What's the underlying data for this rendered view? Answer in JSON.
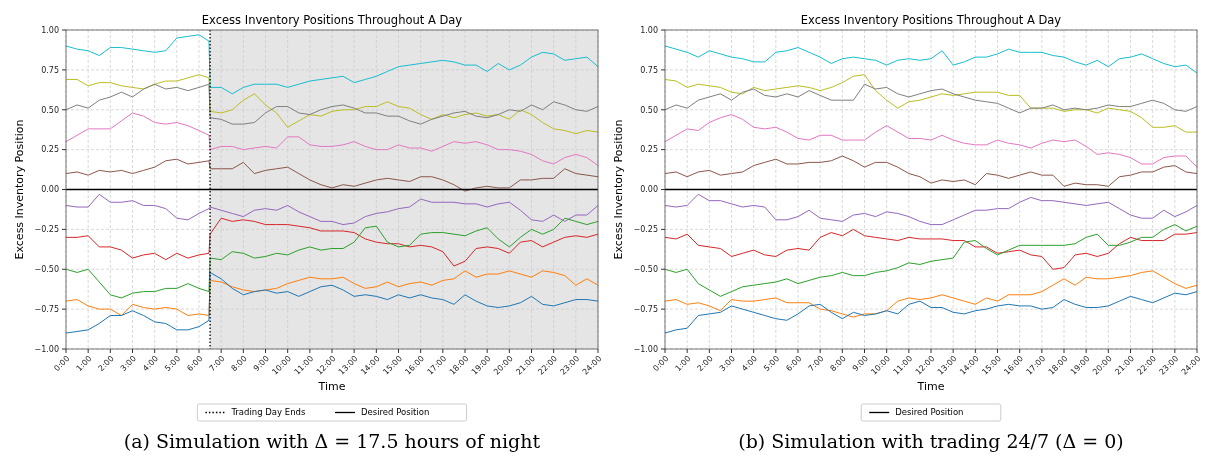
{
  "chart_data": [
    {
      "type": "line",
      "title": "Excess Inventory Positions Throughout A Day",
      "xlabel": "Time",
      "ylabel": "Excess Inventory Position",
      "x": [
        0,
        0.5,
        1,
        1.5,
        2,
        2.5,
        3,
        3.5,
        4,
        4.5,
        5,
        5.5,
        6,
        6.45,
        6.5,
        7,
        7.5,
        8,
        8.5,
        9,
        9.5,
        10,
        10.5,
        11,
        11.5,
        12,
        12.5,
        13,
        13.5,
        14,
        14.5,
        15,
        15.5,
        16,
        16.5,
        17,
        17.5,
        18,
        18.5,
        19,
        19.5,
        20,
        20.5,
        21,
        21.5,
        22,
        22.5,
        23,
        23.5,
        24
      ],
      "xlim": [
        0,
        24
      ],
      "xticks": [
        {
          "value": 0,
          "label": "0:00"
        },
        {
          "value": 1,
          "label": "1:00"
        },
        {
          "value": 2,
          "label": "2:00"
        },
        {
          "value": 3,
          "label": "3:00"
        },
        {
          "value": 4,
          "label": "4:00"
        },
        {
          "value": 5,
          "label": "5:00"
        },
        {
          "value": 6,
          "label": "6:00"
        },
        {
          "value": 7,
          "label": "7:00"
        },
        {
          "value": 8,
          "label": "8:00"
        },
        {
          "value": 9,
          "label": "9:00"
        },
        {
          "value": 10,
          "label": "10:00"
        },
        {
          "value": 11,
          "label": "11:00"
        },
        {
          "value": 12,
          "label": "12:00"
        },
        {
          "value": 13,
          "label": "13:00"
        },
        {
          "value": 14,
          "label": "14:00"
        },
        {
          "value": 15,
          "label": "15:00"
        },
        {
          "value": 16,
          "label": "16:00"
        },
        {
          "value": 17,
          "label": "17:00"
        },
        {
          "value": 18,
          "label": "18:00"
        },
        {
          "value": 19,
          "label": "19:00"
        },
        {
          "value": 20,
          "label": "20:00"
        },
        {
          "value": 21,
          "label": "21:00"
        },
        {
          "value": 22,
          "label": "22:00"
        },
        {
          "value": 23,
          "label": "23:00"
        },
        {
          "value": 24,
          "label": "24:00"
        }
      ],
      "ylim": [
        -1,
        1
      ],
      "yticks": [
        {
          "value": -1,
          "label": "−1.00"
        },
        {
          "value": -0.75,
          "label": "−0.75"
        },
        {
          "value": -0.5,
          "label": "−0.50"
        },
        {
          "value": -0.25,
          "label": "−0.25"
        },
        {
          "value": 0,
          "label": "0.00"
        },
        {
          "value": 0.25,
          "label": "0.25"
        },
        {
          "value": 0.5,
          "label": "0.50"
        },
        {
          "value": 0.75,
          "label": "0.75"
        },
        {
          "value": 1,
          "label": "1.00"
        }
      ],
      "grid": true,
      "legend": "bottom",
      "bands": [
        {
          "axis": "x",
          "from": 6.5,
          "to": 24,
          "color": "#e5e5e5"
        }
      ],
      "ref_lines": [
        {
          "axis": "x",
          "value": 6.5,
          "label": "Trading Day Ends",
          "line_style": "dotted",
          "color": "#000000"
        },
        {
          "axis": "y",
          "value": 0,
          "label": "Desired Position",
          "line_style": "solid",
          "color": "#000000"
        }
      ],
      "annotations": [
        "(a) Simulation with Δ = 17.5 hours of night"
      ],
      "series": [
        {
          "color": "#17becf",
          "values": [
            0.9,
            0.88,
            0.87,
            0.84,
            0.89,
            0.89,
            0.88,
            0.87,
            0.86,
            0.87,
            0.95,
            0.96,
            0.97,
            0.93,
            0.64,
            0.64,
            0.6,
            0.64,
            0.66,
            0.66,
            0.66,
            0.64,
            0.66,
            0.68,
            0.69,
            0.7,
            0.71,
            0.67,
            0.69,
            0.71,
            0.74,
            0.77,
            0.78,
            0.79,
            0.8,
            0.81,
            0.8,
            0.78,
            0.78,
            0.74,
            0.79,
            0.75,
            0.78,
            0.83,
            0.86,
            0.85,
            0.81,
            0.82,
            0.83,
            0.77
          ]
        },
        {
          "color": "#bcbd22",
          "values": [
            0.69,
            0.69,
            0.65,
            0.67,
            0.67,
            0.65,
            0.64,
            0.63,
            0.66,
            0.68,
            0.68,
            0.7,
            0.72,
            0.7,
            0.49,
            0.48,
            0.5,
            0.56,
            0.6,
            0.53,
            0.48,
            0.39,
            0.43,
            0.47,
            0.46,
            0.49,
            0.5,
            0.5,
            0.52,
            0.52,
            0.55,
            0.52,
            0.51,
            0.47,
            0.44,
            0.47,
            0.45,
            0.47,
            0.48,
            0.46,
            0.47,
            0.44,
            0.5,
            0.47,
            0.42,
            0.38,
            0.37,
            0.35,
            0.37,
            0.36
          ]
        },
        {
          "color": "#7f7f7f",
          "values": [
            0.5,
            0.53,
            0.51,
            0.56,
            0.58,
            0.61,
            0.58,
            0.63,
            0.66,
            0.63,
            0.64,
            0.62,
            0.64,
            0.66,
            0.45,
            0.44,
            0.41,
            0.41,
            0.42,
            0.48,
            0.52,
            0.52,
            0.48,
            0.47,
            0.5,
            0.52,
            0.53,
            0.51,
            0.48,
            0.48,
            0.46,
            0.46,
            0.43,
            0.41,
            0.44,
            0.46,
            0.48,
            0.49,
            0.46,
            0.45,
            0.47,
            0.5,
            0.49,
            0.53,
            0.5,
            0.55,
            0.53,
            0.5,
            0.49,
            0.52
          ]
        },
        {
          "color": "#e377c2",
          "values": [
            0.3,
            0.34,
            0.38,
            0.38,
            0.38,
            0.43,
            0.48,
            0.46,
            0.42,
            0.41,
            0.42,
            0.4,
            0.37,
            0.34,
            0.25,
            0.27,
            0.27,
            0.25,
            0.26,
            0.27,
            0.26,
            0.33,
            0.33,
            0.28,
            0.27,
            0.27,
            0.28,
            0.3,
            0.27,
            0.25,
            0.25,
            0.28,
            0.26,
            0.26,
            0.24,
            0.27,
            0.3,
            0.29,
            0.3,
            0.28,
            0.25,
            0.25,
            0.24,
            0.22,
            0.18,
            0.16,
            0.2,
            0.22,
            0.2,
            0.15
          ]
        },
        {
          "color": "#8c564b",
          "values": [
            0.1,
            0.11,
            0.09,
            0.12,
            0.11,
            0.12,
            0.1,
            0.12,
            0.14,
            0.18,
            0.19,
            0.16,
            0.17,
            0.18,
            0.13,
            0.13,
            0.13,
            0.17,
            0.1,
            0.12,
            0.13,
            0.14,
            0.1,
            0.06,
            0.03,
            0.01,
            0.03,
            0.02,
            0.04,
            0.06,
            0.07,
            0.06,
            0.05,
            0.08,
            0.08,
            0.06,
            0.03,
            -0.01,
            0.01,
            0.02,
            0.01,
            0.01,
            0.06,
            0.06,
            0.07,
            0.07,
            0.13,
            0.1,
            0.09,
            0.08
          ]
        },
        {
          "color": "#9467bd",
          "values": [
            -0.1,
            -0.11,
            -0.11,
            -0.03,
            -0.08,
            -0.08,
            -0.07,
            -0.1,
            -0.1,
            -0.12,
            -0.18,
            -0.19,
            -0.15,
            -0.12,
            -0.11,
            -0.13,
            -0.15,
            -0.17,
            -0.13,
            -0.12,
            -0.13,
            -0.1,
            -0.14,
            -0.17,
            -0.2,
            -0.2,
            -0.22,
            -0.21,
            -0.17,
            -0.15,
            -0.14,
            -0.12,
            -0.11,
            -0.06,
            -0.08,
            -0.08,
            -0.08,
            -0.09,
            -0.09,
            -0.11,
            -0.09,
            -0.08,
            -0.13,
            -0.19,
            -0.2,
            -0.16,
            -0.2,
            -0.16,
            -0.16,
            -0.1
          ]
        },
        {
          "color": "#d62728",
          "values": [
            -0.3,
            -0.3,
            -0.29,
            -0.36,
            -0.36,
            -0.38,
            -0.43,
            -0.41,
            -0.4,
            -0.44,
            -0.4,
            -0.43,
            -0.41,
            -0.4,
            -0.28,
            -0.18,
            -0.2,
            -0.19,
            -0.2,
            -0.22,
            -0.22,
            -0.22,
            -0.23,
            -0.24,
            -0.26,
            -0.26,
            -0.26,
            -0.27,
            -0.31,
            -0.33,
            -0.34,
            -0.34,
            -0.36,
            -0.35,
            -0.36,
            -0.39,
            -0.48,
            -0.45,
            -0.37,
            -0.36,
            -0.37,
            -0.4,
            -0.33,
            -0.32,
            -0.36,
            -0.33,
            -0.3,
            -0.29,
            -0.3,
            -0.28
          ]
        },
        {
          "color": "#2ca02c",
          "values": [
            -0.5,
            -0.52,
            -0.5,
            -0.58,
            -0.66,
            -0.68,
            -0.65,
            -0.64,
            -0.64,
            -0.62,
            -0.62,
            -0.59,
            -0.62,
            -0.64,
            -0.43,
            -0.44,
            -0.39,
            -0.4,
            -0.43,
            -0.42,
            -0.4,
            -0.41,
            -0.38,
            -0.36,
            -0.38,
            -0.37,
            -0.37,
            -0.33,
            -0.24,
            -0.23,
            -0.33,
            -0.36,
            -0.35,
            -0.28,
            -0.27,
            -0.27,
            -0.28,
            -0.29,
            -0.26,
            -0.24,
            -0.31,
            -0.36,
            -0.3,
            -0.25,
            -0.28,
            -0.25,
            -0.18,
            -0.2,
            -0.22,
            -0.2
          ]
        },
        {
          "color": "#ff7f0e",
          "values": [
            -0.7,
            -0.69,
            -0.73,
            -0.75,
            -0.75,
            -0.79,
            -0.72,
            -0.74,
            -0.75,
            -0.74,
            -0.75,
            -0.79,
            -0.78,
            -0.79,
            -0.57,
            -0.58,
            -0.61,
            -0.63,
            -0.64,
            -0.63,
            -0.62,
            -0.59,
            -0.57,
            -0.55,
            -0.56,
            -0.56,
            -0.55,
            -0.59,
            -0.62,
            -0.61,
            -0.58,
            -0.61,
            -0.59,
            -0.58,
            -0.6,
            -0.57,
            -0.56,
            -0.51,
            -0.55,
            -0.53,
            -0.53,
            -0.51,
            -0.53,
            -0.55,
            -0.51,
            -0.52,
            -0.54,
            -0.6,
            -0.56,
            -0.6
          ]
        },
        {
          "color": "#1f77b4",
          "values": [
            -0.9,
            -0.89,
            -0.88,
            -0.84,
            -0.79,
            -0.79,
            -0.76,
            -0.79,
            -0.83,
            -0.84,
            -0.88,
            -0.88,
            -0.86,
            -0.82,
            -0.52,
            -0.56,
            -0.62,
            -0.66,
            -0.64,
            -0.63,
            -0.65,
            -0.64,
            -0.67,
            -0.64,
            -0.61,
            -0.6,
            -0.63,
            -0.67,
            -0.66,
            -0.67,
            -0.69,
            -0.66,
            -0.68,
            -0.66,
            -0.68,
            -0.69,
            -0.72,
            -0.66,
            -0.7,
            -0.73,
            -0.74,
            -0.73,
            -0.71,
            -0.67,
            -0.72,
            -0.73,
            -0.71,
            -0.69,
            -0.69,
            -0.7
          ]
        }
      ]
    },
    {
      "type": "line",
      "title": "Excess Inventory Positions Throughout A Day",
      "xlabel": "Time",
      "ylabel": "Excess Inventory Position",
      "x": [
        0,
        0.5,
        1,
        1.5,
        2,
        2.5,
        3,
        3.5,
        4,
        4.5,
        5,
        5.5,
        6,
        6.5,
        7,
        7.5,
        8,
        8.5,
        9,
        9.5,
        10,
        10.5,
        11,
        11.5,
        12,
        12.5,
        13,
        13.5,
        14,
        14.5,
        15,
        15.5,
        16,
        16.5,
        17,
        17.5,
        18,
        18.5,
        19,
        19.5,
        20,
        20.5,
        21,
        21.5,
        22,
        22.5,
        23,
        23.5,
        24
      ],
      "xlim": [
        0,
        24
      ],
      "xticks": [
        {
          "value": 0,
          "label": "0:00"
        },
        {
          "value": 1,
          "label": "1:00"
        },
        {
          "value": 2,
          "label": "2:00"
        },
        {
          "value": 3,
          "label": "3:00"
        },
        {
          "value": 4,
          "label": "4:00"
        },
        {
          "value": 5,
          "label": "5:00"
        },
        {
          "value": 6,
          "label": "6:00"
        },
        {
          "value": 7,
          "label": "7:00"
        },
        {
          "value": 8,
          "label": "8:00"
        },
        {
          "value": 9,
          "label": "9:00"
        },
        {
          "value": 10,
          "label": "10:00"
        },
        {
          "value": 11,
          "label": "11:00"
        },
        {
          "value": 12,
          "label": "12:00"
        },
        {
          "value": 13,
          "label": "13:00"
        },
        {
          "value": 14,
          "label": "14:00"
        },
        {
          "value": 15,
          "label": "15:00"
        },
        {
          "value": 16,
          "label": "16:00"
        },
        {
          "value": 17,
          "label": "17:00"
        },
        {
          "value": 18,
          "label": "18:00"
        },
        {
          "value": 19,
          "label": "19:00"
        },
        {
          "value": 20,
          "label": "20:00"
        },
        {
          "value": 21,
          "label": "21:00"
        },
        {
          "value": 22,
          "label": "22:00"
        },
        {
          "value": 23,
          "label": "23:00"
        },
        {
          "value": 24,
          "label": "24:00"
        }
      ],
      "ylim": [
        -1,
        1
      ],
      "yticks": [
        {
          "value": -1,
          "label": "−1.00"
        },
        {
          "value": -0.75,
          "label": "−0.75"
        },
        {
          "value": -0.5,
          "label": "−0.50"
        },
        {
          "value": -0.25,
          "label": "−0.25"
        },
        {
          "value": 0,
          "label": "0.00"
        },
        {
          "value": 0.25,
          "label": "0.25"
        },
        {
          "value": 0.5,
          "label": "0.50"
        },
        {
          "value": 0.75,
          "label": "0.75"
        },
        {
          "value": 1,
          "label": "1.00"
        }
      ],
      "grid": true,
      "legend": "bottom",
      "ref_lines": [
        {
          "axis": "y",
          "value": 0,
          "label": "Desired Position",
          "line_style": "solid",
          "color": "#000000"
        }
      ],
      "annotations": [
        "(b) Simulation with trading 24/7 (Δ = 0)"
      ],
      "series": [
        {
          "color": "#17becf",
          "values": [
            0.9,
            0.88,
            0.86,
            0.83,
            0.87,
            0.85,
            0.83,
            0.82,
            0.8,
            0.8,
            0.86,
            0.87,
            0.89,
            0.86,
            0.83,
            0.79,
            0.82,
            0.83,
            0.82,
            0.81,
            0.78,
            0.81,
            0.82,
            0.81,
            0.82,
            0.87,
            0.78,
            0.8,
            0.83,
            0.83,
            0.85,
            0.88,
            0.86,
            0.86,
            0.86,
            0.84,
            0.83,
            0.8,
            0.78,
            0.81,
            0.77,
            0.82,
            0.83,
            0.85,
            0.82,
            0.79,
            0.77,
            0.78,
            0.73
          ]
        },
        {
          "color": "#bcbd22",
          "values": [
            0.69,
            0.68,
            0.64,
            0.66,
            0.65,
            0.64,
            0.61,
            0.6,
            0.64,
            0.62,
            0.63,
            0.64,
            0.65,
            0.64,
            0.62,
            0.64,
            0.67,
            0.71,
            0.72,
            0.62,
            0.56,
            0.51,
            0.55,
            0.56,
            0.58,
            0.6,
            0.59,
            0.6,
            0.61,
            0.61,
            0.61,
            0.59,
            0.59,
            0.51,
            0.51,
            0.51,
            0.49,
            0.5,
            0.5,
            0.48,
            0.51,
            0.5,
            0.49,
            0.45,
            0.39,
            0.39,
            0.4,
            0.36,
            0.36
          ]
        },
        {
          "color": "#7f7f7f",
          "values": [
            0.5,
            0.53,
            0.51,
            0.56,
            0.58,
            0.6,
            0.56,
            0.61,
            0.63,
            0.59,
            0.58,
            0.6,
            0.58,
            0.62,
            0.59,
            0.56,
            0.56,
            0.56,
            0.66,
            0.63,
            0.64,
            0.6,
            0.58,
            0.6,
            0.62,
            0.63,
            0.6,
            0.58,
            0.56,
            0.55,
            0.54,
            0.51,
            0.48,
            0.51,
            0.51,
            0.53,
            0.5,
            0.51,
            0.5,
            0.51,
            0.53,
            0.52,
            0.52,
            0.54,
            0.56,
            0.54,
            0.5,
            0.49,
            0.52
          ]
        },
        {
          "color": "#e377c2",
          "values": [
            0.3,
            0.34,
            0.38,
            0.37,
            0.42,
            0.45,
            0.47,
            0.44,
            0.39,
            0.38,
            0.39,
            0.36,
            0.32,
            0.31,
            0.34,
            0.34,
            0.31,
            0.31,
            0.31,
            0.36,
            0.4,
            0.36,
            0.32,
            0.32,
            0.31,
            0.34,
            0.31,
            0.29,
            0.28,
            0.28,
            0.31,
            0.29,
            0.28,
            0.26,
            0.29,
            0.31,
            0.3,
            0.31,
            0.27,
            0.22,
            0.23,
            0.22,
            0.2,
            0.16,
            0.16,
            0.2,
            0.21,
            0.21,
            0.14
          ]
        },
        {
          "color": "#8c564b",
          "values": [
            0.1,
            0.11,
            0.08,
            0.11,
            0.12,
            0.09,
            0.1,
            0.11,
            0.15,
            0.17,
            0.19,
            0.16,
            0.16,
            0.17,
            0.17,
            0.18,
            0.21,
            0.18,
            0.14,
            0.17,
            0.17,
            0.14,
            0.1,
            0.08,
            0.04,
            0.06,
            0.05,
            0.06,
            0.03,
            0.1,
            0.09,
            0.07,
            0.09,
            0.11,
            0.09,
            0.09,
            0.02,
            0.04,
            0.03,
            0.03,
            0.02,
            0.08,
            0.09,
            0.11,
            0.11,
            0.14,
            0.15,
            0.11,
            0.1
          ]
        },
        {
          "color": "#9467bd",
          "values": [
            -0.1,
            -0.11,
            -0.1,
            -0.03,
            -0.07,
            -0.07,
            -0.09,
            -0.11,
            -0.1,
            -0.11,
            -0.19,
            -0.19,
            -0.17,
            -0.13,
            -0.18,
            -0.19,
            -0.2,
            -0.16,
            -0.15,
            -0.17,
            -0.14,
            -0.15,
            -0.17,
            -0.2,
            -0.22,
            -0.22,
            -0.19,
            -0.16,
            -0.13,
            -0.13,
            -0.12,
            -0.12,
            -0.08,
            -0.05,
            -0.07,
            -0.07,
            -0.08,
            -0.09,
            -0.1,
            -0.09,
            -0.08,
            -0.12,
            -0.16,
            -0.18,
            -0.18,
            -0.13,
            -0.17,
            -0.14,
            -0.1
          ]
        },
        {
          "color": "#d62728",
          "values": [
            -0.3,
            -0.31,
            -0.28,
            -0.35,
            -0.36,
            -0.37,
            -0.42,
            -0.4,
            -0.38,
            -0.41,
            -0.42,
            -0.38,
            -0.37,
            -0.38,
            -0.3,
            -0.27,
            -0.29,
            -0.25,
            -0.29,
            -0.3,
            -0.31,
            -0.32,
            -0.3,
            -0.31,
            -0.31,
            -0.31,
            -0.32,
            -0.32,
            -0.36,
            -0.36,
            -0.4,
            -0.39,
            -0.38,
            -0.41,
            -0.42,
            -0.5,
            -0.49,
            -0.41,
            -0.4,
            -0.42,
            -0.4,
            -0.34,
            -0.3,
            -0.32,
            -0.32,
            -0.32,
            -0.28,
            -0.28,
            -0.27
          ]
        },
        {
          "color": "#2ca02c",
          "values": [
            -0.5,
            -0.52,
            -0.5,
            -0.59,
            -0.63,
            -0.67,
            -0.64,
            -0.61,
            -0.6,
            -0.59,
            -0.58,
            -0.56,
            -0.59,
            -0.57,
            -0.55,
            -0.54,
            -0.52,
            -0.54,
            -0.54,
            -0.52,
            -0.51,
            -0.49,
            -0.46,
            -0.47,
            -0.45,
            -0.44,
            -0.43,
            -0.33,
            -0.32,
            -0.37,
            -0.41,
            -0.38,
            -0.35,
            -0.35,
            -0.35,
            -0.35,
            -0.35,
            -0.34,
            -0.3,
            -0.28,
            -0.35,
            -0.35,
            -0.33,
            -0.3,
            -0.3,
            -0.25,
            -0.22,
            -0.26,
            -0.23
          ]
        },
        {
          "color": "#ff7f0e",
          "values": [
            -0.7,
            -0.69,
            -0.72,
            -0.71,
            -0.73,
            -0.76,
            -0.69,
            -0.7,
            -0.7,
            -0.69,
            -0.68,
            -0.71,
            -0.71,
            -0.71,
            -0.75,
            -0.76,
            -0.78,
            -0.8,
            -0.78,
            -0.78,
            -0.76,
            -0.7,
            -0.68,
            -0.69,
            -0.68,
            -0.66,
            -0.68,
            -0.7,
            -0.72,
            -0.68,
            -0.7,
            -0.66,
            -0.66,
            -0.66,
            -0.64,
            -0.6,
            -0.56,
            -0.6,
            -0.55,
            -0.56,
            -0.56,
            -0.55,
            -0.54,
            -0.52,
            -0.51,
            -0.55,
            -0.59,
            -0.62,
            -0.6
          ]
        },
        {
          "color": "#1f77b4",
          "values": [
            -0.9,
            -0.88,
            -0.87,
            -0.79,
            -0.78,
            -0.77,
            -0.73,
            -0.75,
            -0.77,
            -0.79,
            -0.81,
            -0.82,
            -0.78,
            -0.73,
            -0.72,
            -0.77,
            -0.81,
            -0.77,
            -0.79,
            -0.78,
            -0.76,
            -0.78,
            -0.72,
            -0.7,
            -0.74,
            -0.74,
            -0.77,
            -0.78,
            -0.76,
            -0.75,
            -0.73,
            -0.72,
            -0.73,
            -0.73,
            -0.75,
            -0.74,
            -0.69,
            -0.72,
            -0.74,
            -0.74,
            -0.73,
            -0.7,
            -0.67,
            -0.69,
            -0.71,
            -0.68,
            -0.65,
            -0.66,
            -0.64
          ]
        }
      ]
    }
  ]
}
